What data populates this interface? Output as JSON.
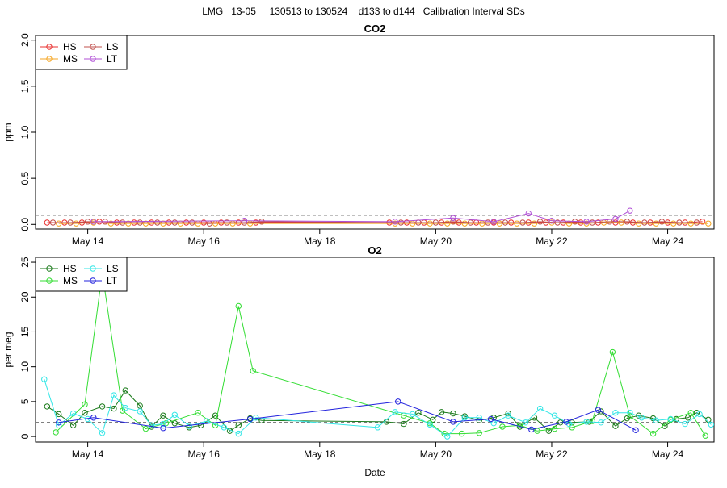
{
  "main_title": "LMG   13-05     130513 to 130524    d133 to d144   Calibration Interval SDs",
  "chart_data": [
    {
      "type": "scatter",
      "title": "CO2",
      "xlabel": "",
      "ylabel": "ppm",
      "xlim": [
        13.1,
        24.8
      ],
      "ylim": [
        -0.05,
        2.05
      ],
      "x_ticks": [
        14,
        16,
        18,
        20,
        22,
        24
      ],
      "x_tick_labels": [
        "May 14",
        "May 16",
        "May 18",
        "May 20",
        "May 22",
        "May 24"
      ],
      "y_ticks": [
        0,
        0.5,
        1.0,
        1.5,
        2.0
      ],
      "y_tick_labels": [
        "0.0",
        "0.5",
        "1.0",
        "1.5",
        "2.0"
      ],
      "reference_line": 0.1,
      "legend": {
        "placement": "top-left",
        "columns": 2
      },
      "series": [
        {
          "name": "HS",
          "color": "#e8302f",
          "x": [
            13.3,
            13.6,
            13.9,
            14.2,
            14.5,
            14.8,
            15.1,
            15.4,
            15.7,
            16.0,
            16.3,
            16.6,
            16.9,
            19.2,
            19.5,
            19.8,
            20.1,
            20.4,
            20.7,
            21.0,
            21.3,
            21.6,
            21.9,
            22.2,
            22.5,
            22.8,
            23.1,
            23.4,
            23.7,
            24.0,
            24.3,
            24.6
          ],
          "y": [
            0.02,
            0.02,
            0.02,
            0.03,
            0.02,
            0.02,
            0.02,
            0.02,
            0.02,
            0.02,
            0.02,
            0.02,
            0.02,
            0.02,
            0.02,
            0.02,
            0.02,
            0.02,
            0.02,
            0.02,
            0.02,
            0.02,
            0.02,
            0.02,
            0.02,
            0.02,
            0.02,
            0.02,
            0.02,
            0.02,
            0.02,
            0.03
          ]
        },
        {
          "name": "MS",
          "color": "#f5a623",
          "x": [
            13.5,
            13.8,
            14.1,
            14.4,
            14.7,
            15.0,
            15.3,
            15.6,
            15.9,
            16.2,
            16.5,
            16.8,
            19.3,
            19.6,
            19.9,
            20.2,
            20.5,
            20.8,
            21.1,
            21.4,
            21.7,
            22.0,
            22.3,
            22.6,
            22.9,
            23.2,
            23.5,
            23.8,
            24.1,
            24.4,
            24.7
          ],
          "y": [
            0.01,
            0.01,
            0.02,
            0.01,
            0.01,
            0.01,
            0.01,
            0.01,
            0.01,
            0.01,
            0.01,
            0.01,
            0.01,
            0.01,
            0.01,
            0.01,
            0.01,
            0.01,
            0.01,
            0.01,
            0.01,
            0.02,
            0.01,
            0.01,
            0.02,
            0.02,
            0.01,
            0.01,
            0.01,
            0.01,
            0.01
          ]
        },
        {
          "name": "LS",
          "color": "#c0504d",
          "x": [
            13.4,
            13.7,
            14.0,
            14.3,
            14.6,
            14.9,
            15.2,
            15.5,
            15.8,
            16.1,
            16.4,
            16.7,
            17.0,
            19.4,
            19.7,
            20.0,
            20.3,
            20.6,
            20.9,
            21.2,
            21.5,
            21.8,
            22.1,
            22.4,
            22.7,
            23.0,
            23.3,
            23.6,
            23.9,
            24.2,
            24.5
          ],
          "y": [
            0.02,
            0.02,
            0.03,
            0.03,
            0.02,
            0.02,
            0.02,
            0.02,
            0.02,
            0.01,
            0.02,
            0.02,
            0.03,
            0.02,
            0.02,
            0.02,
            0.03,
            0.02,
            0.02,
            0.02,
            0.02,
            0.03,
            0.02,
            0.03,
            0.02,
            0.03,
            0.03,
            0.02,
            0.03,
            0.02,
            0.02
          ]
        },
        {
          "name": "LT",
          "color": "#b04fd6",
          "x": [
            14.1,
            16.7,
            19.3,
            20.3,
            21.0,
            21.6,
            22.0,
            22.6,
            23.1,
            23.35
          ],
          "y": [
            0.03,
            0.04,
            0.03,
            0.07,
            0.03,
            0.12,
            0.04,
            0.03,
            0.06,
            0.15
          ]
        }
      ]
    },
    {
      "type": "scatter",
      "title": "O2",
      "xlabel": "Date",
      "ylabel": "per meg",
      "xlim": [
        13.1,
        24.8
      ],
      "ylim": [
        -0.8,
        25.7
      ],
      "x_ticks": [
        14,
        16,
        18,
        20,
        22,
        24
      ],
      "x_tick_labels": [
        "May 14",
        "May 16",
        "May 18",
        "May 20",
        "May 22",
        "May 24"
      ],
      "y_ticks": [
        0,
        5,
        10,
        15,
        20,
        25
      ],
      "y_tick_labels": [
        "0",
        "5",
        "10",
        "15",
        "20",
        "25"
      ],
      "reference_line": 2,
      "legend": {
        "placement": "top-left",
        "columns": 2
      },
      "series": [
        {
          "name": "HS",
          "color": "#1a7a1a",
          "x": [
            13.3,
            13.5,
            13.75,
            13.95,
            14.25,
            14.45,
            14.65,
            14.9,
            15.1,
            15.3,
            15.5,
            15.75,
            15.95,
            16.2,
            16.45,
            16.6,
            16.8,
            17.0,
            19.15,
            19.45,
            19.7,
            19.95,
            20.1,
            20.3,
            20.5,
            20.75,
            21.0,
            21.25,
            21.45,
            21.7,
            21.95,
            22.15,
            22.35,
            22.65,
            22.85,
            23.1,
            23.3,
            23.5,
            23.75,
            23.95,
            24.15,
            24.35,
            24.5,
            24.7
          ],
          "y": [
            4.3,
            3.2,
            1.6,
            3.4,
            4.3,
            4.0,
            6.6,
            4.4,
            1.4,
            3.0,
            1.9,
            1.3,
            1.6,
            3.0,
            0.8,
            1.6,
            2.6,
            2.3,
            2.1,
            1.8,
            3.4,
            2.4,
            3.5,
            3.3,
            2.9,
            2.3,
            2.7,
            3.3,
            1.4,
            2.7,
            0.8,
            2.0,
            2.0,
            2.1,
            3.6,
            1.5,
            2.6,
            3.0,
            2.6,
            1.5,
            2.5,
            2.7,
            3.4,
            2.4
          ]
        },
        {
          "name": "MS",
          "color": "#33dd33",
          "x": [
            13.45,
            13.95,
            14.25,
            14.6,
            15.0,
            15.35,
            15.9,
            16.2,
            16.6,
            16.85,
            19.45,
            19.9,
            20.15,
            20.45,
            20.75,
            21.15,
            21.45,
            21.75,
            22.05,
            22.35,
            22.7,
            23.05,
            23.35,
            23.75,
            24.05,
            24.4,
            24.65
          ],
          "y": [
            0.6,
            4.6,
            23.5,
            3.7,
            1.1,
            1.9,
            3.4,
            1.6,
            18.7,
            9.4,
            3.0,
            1.9,
            0.4,
            0.4,
            0.5,
            1.4,
            1.6,
            0.8,
            1.1,
            1.3,
            2.2,
            12.1,
            2.9,
            0.4,
            2.4,
            3.4,
            0.1
          ]
        },
        {
          "name": "LS",
          "color": "#33e6e6",
          "x": [
            13.25,
            13.5,
            13.75,
            14.0,
            14.25,
            14.45,
            14.65,
            14.9,
            15.1,
            15.3,
            15.5,
            15.75,
            16.05,
            16.35,
            16.6,
            16.9,
            19.0,
            19.3,
            19.6,
            19.9,
            20.2,
            20.5,
            20.75,
            21.0,
            21.25,
            21.55,
            21.8,
            22.05,
            22.3,
            22.6,
            22.85,
            23.1,
            23.35,
            23.55,
            23.8,
            24.05,
            24.3,
            24.55,
            24.75
          ],
          "y": [
            8.2,
            1.6,
            3.3,
            2.5,
            0.5,
            5.9,
            4.1,
            3.6,
            1.6,
            1.8,
            3.1,
            1.5,
            2.2,
            1.3,
            0.4,
            2.7,
            1.3,
            3.5,
            3.2,
            1.7,
            0.0,
            2.7,
            2.7,
            1.9,
            3.0,
            2.0,
            4.0,
            3.0,
            1.8,
            2.1,
            2.0,
            3.4,
            3.4,
            2.7,
            2.3,
            2.5,
            1.8,
            3.2,
            1.7
          ]
        },
        {
          "name": "LT",
          "color": "#2222dd",
          "x": [
            13.5,
            14.1,
            15.3,
            16.8,
            19.35,
            20.3,
            20.95,
            21.65,
            22.25,
            22.8,
            23.45
          ],
          "y": [
            2.0,
            2.7,
            1.2,
            2.5,
            5.0,
            2.1,
            2.5,
            1.0,
            2.1,
            3.8,
            0.9
          ]
        }
      ]
    }
  ]
}
